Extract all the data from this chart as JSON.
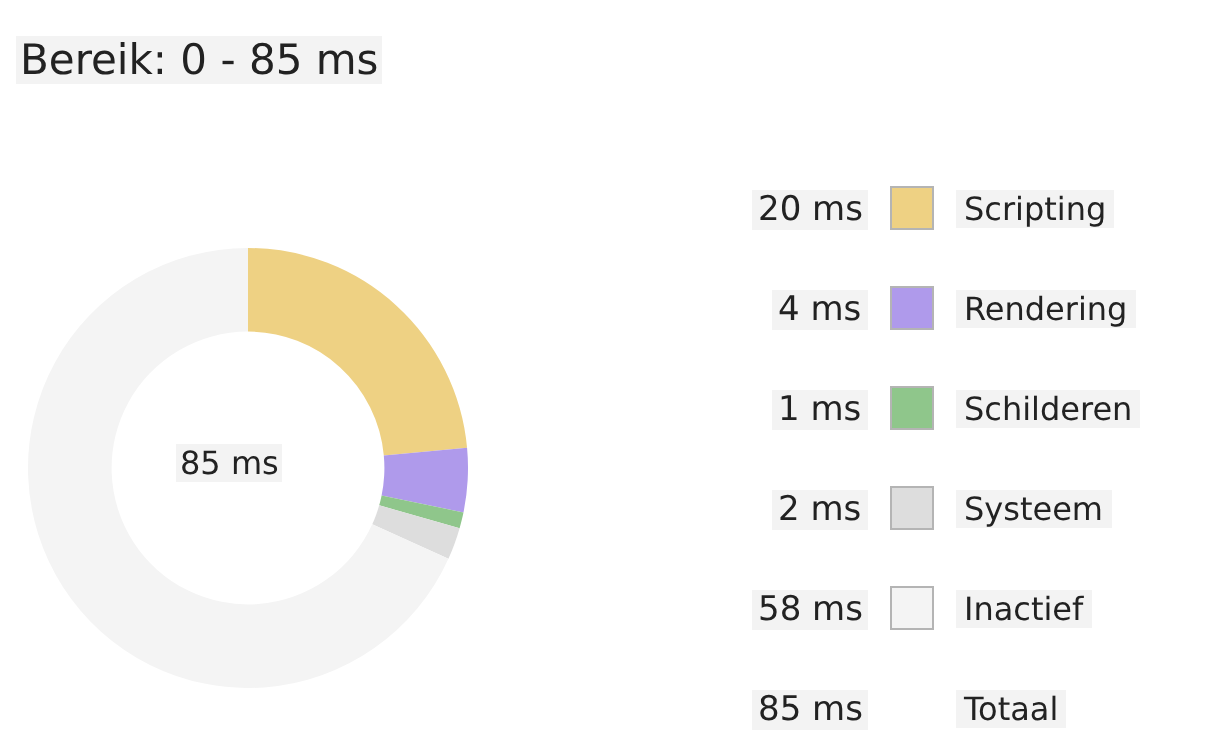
{
  "chart_data": {
    "type": "donut",
    "title": "Bereik: 0 - 85 ms",
    "categories": [
      "Scripting",
      "Rendering",
      "Schilderen",
      "Systeem",
      "Inactief"
    ],
    "values": [
      20,
      4,
      1,
      2,
      58
    ],
    "colors": [
      "#eed183",
      "#af9aeb",
      "#8fc68b",
      "#dddddd",
      "#f4f4f4"
    ],
    "value_labels": [
      "20 ms",
      "4 ms",
      "1 ms",
      "2 ms",
      "58 ms"
    ],
    "legend": "right",
    "annotations": [
      "85 ms",
      "85 ms",
      "Totaal"
    ]
  }
}
